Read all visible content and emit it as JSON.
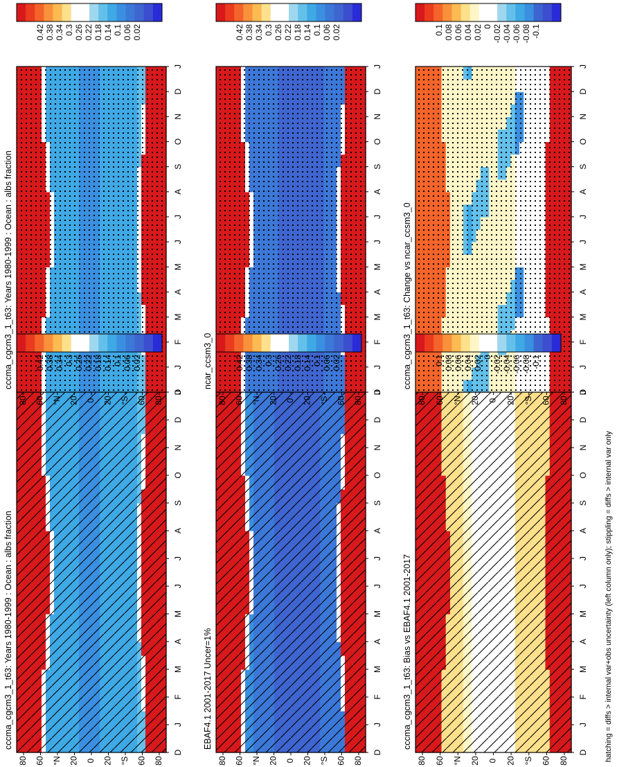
{
  "footnote": "hatching = diffs > internal var+obs uncertainty (left column only); stippling = diffs > internal var only",
  "scales": {
    "abs": {
      "labels": [
        "0.42",
        "0.38",
        "0.34",
        "0.3",
        "0.26",
        "0.22",
        "0.18",
        "0.14",
        "0.1",
        "0.06",
        "0.02"
      ],
      "colors": [
        "#d7191c",
        "#ea3b1f",
        "#f4642a",
        "#f9913a",
        "#fbba52",
        "#fde08b",
        "#ffffff",
        "#ffffff",
        "#9fd7ef",
        "#63c0ea",
        "#3fa9e6",
        "#3a8fe0",
        "#3c78d8",
        "#3f65d0",
        "#3c4ecf",
        "#2a2bd8"
      ],
      "range": [
        0,
        0.44
      ]
    },
    "diff": {
      "labels": [
        "0.1",
        "0.08",
        "0.06",
        "0.04",
        "0.02",
        "0",
        "-0.02",
        "-0.04",
        "-0.06",
        "-0.08",
        "-0.1"
      ],
      "colors": [
        "#d7191c",
        "#ea3b1f",
        "#f4642a",
        "#f9913a",
        "#fbba52",
        "#fde08b",
        "#fff6c8",
        "#ffffff",
        "#ffffff",
        "#9fd7ef",
        "#63c0ea",
        "#3fa9e6",
        "#3a8fe0",
        "#3c65d0",
        "#3c4ecf",
        "#2a2bd8"
      ],
      "range": [
        -0.11,
        0.11
      ]
    }
  },
  "axes": {
    "months": [
      "D",
      "J",
      "F",
      "M",
      "A",
      "M",
      "J",
      "J",
      "A",
      "S",
      "O",
      "N",
      "D",
      "J"
    ],
    "lat_labels": [
      "80",
      "60",
      "°N",
      "20",
      "0",
      "20",
      "°S",
      "60",
      "80"
    ]
  },
  "chart_data": [
    {
      "type": "heatmap",
      "title": "cccma_cgcm3_1_t63: Years 1980-1999 : Ocean : albs fraction",
      "scale": "abs",
      "overlay": "hatch",
      "model": "model",
      "x": "month",
      "y": "latitude",
      "summary": {
        "polar_north": 0.44,
        "midlat_north": 0.16,
        "tropics": 0.13,
        "midlat_south": 0.17,
        "polar_south": 0.44
      }
    },
    {
      "type": "heatmap",
      "title": "cccma_cgcm3_1_t63: Years 1980-1999 : Ocean : albs fraction",
      "scale": "abs",
      "overlay": "stipple",
      "model": "model",
      "x": "month",
      "y": "latitude",
      "summary": {
        "polar_north": 0.44,
        "midlat_north": 0.16,
        "tropics": 0.13,
        "midlat_south": 0.17,
        "polar_south": 0.44
      }
    },
    {
      "type": "heatmap",
      "title": "EBAF4.1 2001-2017 Uncer=1%",
      "scale": "abs",
      "overlay": "hatch",
      "model": "obs",
      "x": "month",
      "y": "latitude",
      "summary": {
        "polar_north": 0.44,
        "midlat_north": 0.12,
        "tropics": 0.06,
        "midlat_south": 0.1,
        "polar_south": 0.44
      }
    },
    {
      "type": "heatmap",
      "title": "ncar_ccsm3_0",
      "scale": "abs",
      "overlay": "stipple",
      "model": "ncar",
      "x": "month",
      "y": "latitude",
      "summary": {
        "polar_north": 0.44,
        "midlat_north": 0.11,
        "tropics": 0.07,
        "midlat_south": 0.09,
        "polar_south": 0.44
      }
    },
    {
      "type": "heatmap",
      "title": "cccma_cgcm3_1_t63: Bias vs EBAF4.1 2001-2017",
      "scale": "diff",
      "overlay": "hatch",
      "model": "bias",
      "x": "month",
      "y": "latitude",
      "summary": {
        "polar_north": 0.11,
        "midlat_north": 0.04,
        "tropics": 0.01,
        "midlat_south": 0.04,
        "polar_south": 0.11
      }
    },
    {
      "type": "heatmap",
      "title": "cccma_cgcm3_1_t63: Change vs ncar_ccsm3_0",
      "scale": "diff",
      "overlay": "stipple",
      "model": "change",
      "x": "month",
      "y": "latitude",
      "summary": {
        "polar_north": 0.08,
        "midlat_north": 0.03,
        "tropics": 0.02,
        "midlat_south": 0.0,
        "polar_south": 0.11
      }
    }
  ]
}
